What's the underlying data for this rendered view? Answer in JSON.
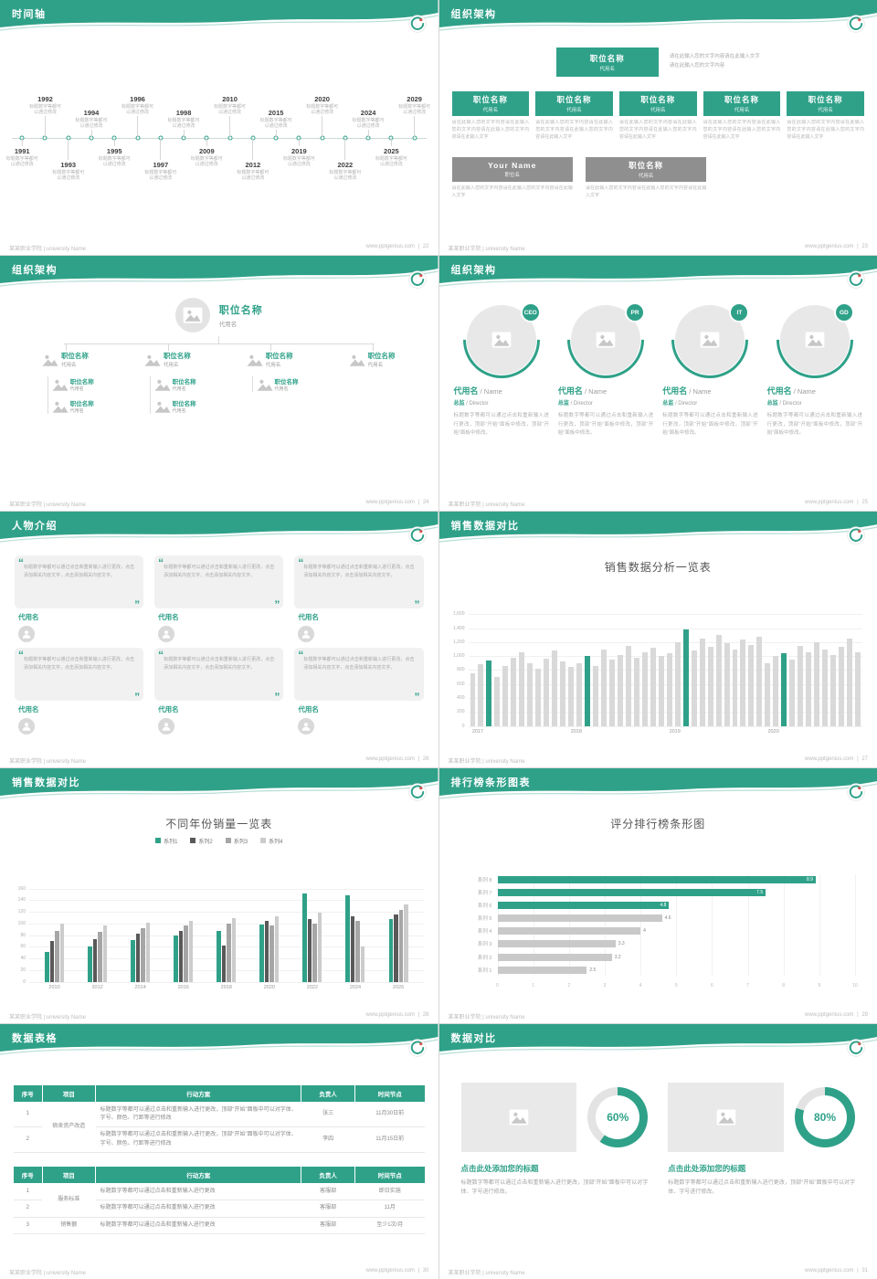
{
  "theme": {
    "teal": "#2fa189",
    "gray_bar": "#d9d9d9",
    "series_colors": [
      "#2fa189",
      "#595959",
      "#a6a6a6",
      "#cccccc"
    ],
    "highlight_bar": "#2fa189",
    "table_header_bg": "#2fa189",
    "logo_red": "#d9534f"
  },
  "footer": {
    "school": "某某职业学院 | university Name",
    "site": "www.pptgenius.com",
    "sep": "|"
  },
  "slides": {
    "timeline": {
      "title": "时间轴",
      "page_no": "22",
      "caption": "标题数字等都可以通过修改",
      "events_top": [
        "1992",
        "1994",
        "1996",
        "1998",
        "2010",
        "2015",
        "2020",
        "2024",
        "2029"
      ],
      "events_bottom": [
        "1991",
        "1993",
        "1995",
        "1997",
        "2009",
        "2012",
        "2019",
        "2022",
        "2025"
      ]
    },
    "org1": {
      "title": "组织架构",
      "page_no": "23",
      "root_title": "职位名称",
      "root_sub": "代用名",
      "root_desc1": "请在此输入您的文字内容请在此输入文字",
      "root_desc2": "请在此输入您的文字内容",
      "box_title": "职位名称",
      "box_sub": "代用名",
      "box_desc": "请在此输入您的文字内容请在此输入您的文字内容请在此输入您的文字内容请在此输入文字",
      "alt_title1": "Your Name",
      "alt_sub1": "职位名",
      "alt_title2": "职位名称",
      "alt_sub2": "代用名",
      "alt_desc": "请在此输入您的文字内容请在此输入您的文字内容请在此输入文字"
    },
    "org2": {
      "title": "组织架构",
      "page_no": "24",
      "root_title": "职位名称",
      "root_sub": "代用名",
      "node_title": "职位名称",
      "node_sub": "代用名",
      "child_title": "职位名称",
      "child_sub": "代用名"
    },
    "org3": {
      "title": "组织架构",
      "page_no": "25",
      "badges": [
        "CEO",
        "PR",
        "IT",
        "GD"
      ],
      "name": "代用名",
      "name_en": "/ Name",
      "role": "总监",
      "role_en": "/ Director",
      "desc": "标题数字等都可以通过点击和重新输入进行更改，顶部“开始”面板中修改，顶部“开始”面板中修改。"
    },
    "people": {
      "title": "人物介绍",
      "page_no": "26",
      "quote": "标题数字等都可以通过点击和重新输入进行更改，点击添加相关内容文字，点击添加相关内容文字。",
      "name": "代用名"
    },
    "sales1": {
      "title": "销售数据对比",
      "page_no": "27",
      "chart": {
        "type": "bar",
        "chart_title": "销售数据分析一览表",
        "ymax": 1600,
        "yticks": [
          "0",
          "200",
          "400",
          "600",
          "800",
          "1,000",
          "1,200",
          "1,400",
          "1,600"
        ],
        "xlabels": [
          "2017",
          "2018",
          "2019",
          "2020"
        ],
        "values": [
          760,
          880,
          940,
          700,
          860,
          980,
          1050,
          900,
          820,
          960,
          1080,
          920,
          840,
          900,
          1000,
          860,
          1100,
          950,
          1020,
          1150,
          980,
          1060,
          1120,
          1000,
          1040,
          1200,
          1380,
          1080,
          1250,
          1140,
          1300,
          1180,
          1100,
          1240,
          1160,
          1280,
          900,
          1000,
          1040,
          950,
          1150,
          1060,
          1200,
          1100,
          1010,
          1140,
          1250,
          1060
        ],
        "teal_indices": [
          2,
          14,
          26,
          38
        ]
      }
    },
    "sales2": {
      "title": "销售数据对比",
      "page_no": "28",
      "chart": {
        "type": "grouped-bar",
        "chart_title": "不同年份销量一览表",
        "ymax": 160,
        "yticks": [
          "0",
          "20",
          "40",
          "60",
          "80",
          "100",
          "120",
          "140",
          "160"
        ],
        "categories": [
          "2010",
          "2012",
          "2014",
          "2016",
          "2018",
          "2020",
          "2022",
          "2024",
          "2026"
        ],
        "series": [
          {
            "name": "系列1",
            "color": "#2fa189",
            "values": [
              52,
              60,
              72,
              80,
              88,
              98,
              152,
              148,
              108
            ]
          },
          {
            "name": "系列2",
            "color": "#595959",
            "values": [
              70,
              74,
              82,
              88,
              62,
              104,
              108,
              112,
              116
            ]
          },
          {
            "name": "系列3",
            "color": "#a6a6a6",
            "values": [
              88,
              86,
              92,
              96,
              100,
              96,
              100,
              104,
              124
            ]
          },
          {
            "name": "系列4",
            "color": "#cccccc",
            "values": [
              100,
              96,
              102,
              104,
              110,
              112,
              118,
              60,
              132
            ]
          }
        ]
      }
    },
    "ranking": {
      "title": "排行榜条形图表",
      "page_no": "29",
      "chart": {
        "type": "hbar",
        "chart_title": "评分排行榜条形图",
        "xmax": 10,
        "xticks": [
          "0",
          "1",
          "2",
          "3",
          "4",
          "5",
          "6",
          "7",
          "8",
          "9",
          "10"
        ],
        "rows": [
          {
            "label": "系列 8",
            "value": 8.9,
            "display": "8.9",
            "highlight": true
          },
          {
            "label": "系列 7",
            "value": 7.5,
            "display": "7.5",
            "highlight": true
          },
          {
            "label": "系列 6",
            "value": 4.8,
            "display": "4.8",
            "highlight": true
          },
          {
            "label": "系列 5",
            "value": 4.6,
            "display": "4.6",
            "highlight": false
          },
          {
            "label": "系列 4",
            "value": 4,
            "display": "4",
            "highlight": false
          },
          {
            "label": "系列 3",
            "value": 3.3,
            "display": "3.3",
            "highlight": false
          },
          {
            "label": "系列 2",
            "value": 3.2,
            "display": "3.2",
            "highlight": false
          },
          {
            "label": "系列 1",
            "value": 2.5,
            "display": "2.5",
            "highlight": false
          }
        ]
      }
    },
    "tables": {
      "title": "数据表格",
      "page_no": "30",
      "headers": [
        "序号",
        "项目",
        "行动方案",
        "负责人",
        "时间节点"
      ],
      "table1": {
        "project": "宿舍资产改造",
        "rows": [
          {
            "no": "1",
            "plan": "标题数字等都可以通过点击和重新输入进行更改，顶部“开始”面板中可以对字体、字号、颜色、行距等进行修改",
            "owner": "张三",
            "time": "11月30日前"
          },
          {
            "no": "2",
            "plan": "标题数字等都可以通过点击和重新输入进行更改，顶部“开始”面板中可以对字体、字号、颜色、行距等进行修改",
            "owner": "李四",
            "time": "11月15日前"
          }
        ]
      },
      "table2": {
        "project1": "服务标准",
        "project2": "销售额",
        "rows": [
          {
            "no": "1",
            "plan": "标题数字等都可以通过点击和重新输入进行更改",
            "owner": "客服部",
            "time": "即日实施"
          },
          {
            "no": "2",
            "plan": "标题数字等都可以通过点击和重新输入进行更改",
            "owner": "客服部",
            "time": "11月"
          },
          {
            "no": "3",
            "plan": "标题数字等都可以通过点击和重新输入进行更改",
            "owner": "客服部",
            "time": "至少1次/月"
          }
        ]
      }
    },
    "compare": {
      "title": "数据对比",
      "page_no": "31",
      "panels": [
        {
          "percent": 60,
          "percent_label": "60%",
          "heading": "点击此处添加您的标题",
          "body": "标题数字等都可以通过点击和重新输入进行更改，顶部“开始”面板中可以对字体、字号进行修改。"
        },
        {
          "percent": 80,
          "percent_label": "80%",
          "heading": "点击此处添加您的标题",
          "body": "标题数字等都可以通过点击和重新输入进行更改，顶部“开始”面板中可以对字体、字号进行修改。"
        }
      ]
    }
  }
}
